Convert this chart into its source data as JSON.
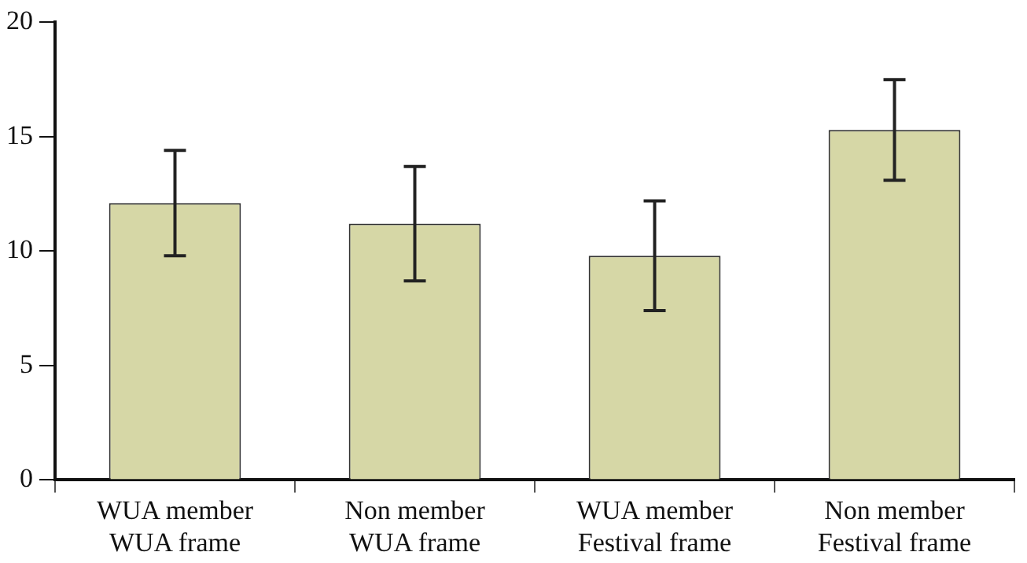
{
  "chart_data": {
    "type": "bar",
    "categories": [
      "WUA member\nWUA frame",
      "Non member\nWUA frame",
      "WUA member\nFestival frame",
      "Non member\nFestival frame"
    ],
    "values": [
      12.1,
      11.2,
      9.8,
      15.3
    ],
    "errors": [
      2.3,
      2.5,
      2.4,
      2.2
    ],
    "color": "#d6d7a6",
    "ylim": [
      0,
      20
    ],
    "yticks": [
      0,
      5,
      10,
      15,
      20
    ],
    "grid": false,
    "legend": false
  }
}
